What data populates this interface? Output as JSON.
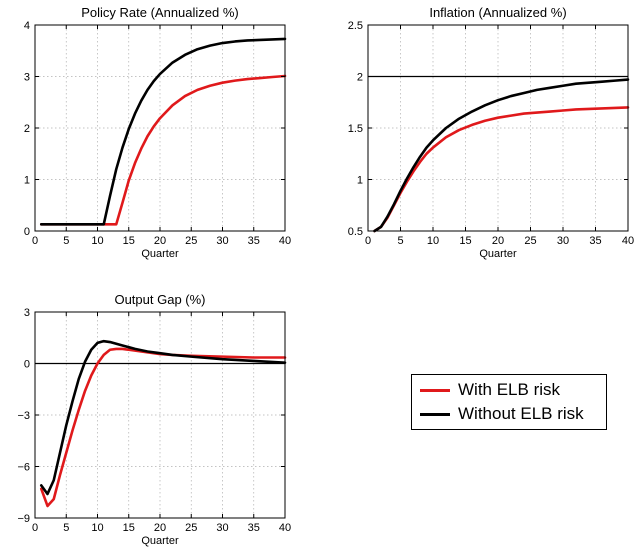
{
  "chart_data": [
    {
      "type": "line",
      "title": "Policy Rate (Annualized %)",
      "xlabel": "Quarter",
      "ylabel": "",
      "xlim": [
        0,
        40
      ],
      "ylim": [
        0,
        4
      ],
      "xticks": [
        0,
        5,
        10,
        15,
        20,
        25,
        30,
        35,
        40
      ],
      "yticks": [
        0,
        1,
        2,
        3,
        4
      ],
      "ytick_labels": [
        "0",
        "1",
        "2",
        "3",
        "4"
      ],
      "grid": true,
      "hline": null,
      "series": [
        {
          "name": "With ELB risk",
          "color": "#e0191b",
          "x": [
            1,
            2,
            4,
            6,
            8,
            10,
            11,
            12,
            13,
            14,
            15,
            16,
            17,
            18,
            19,
            20,
            22,
            24,
            26,
            28,
            30,
            32,
            34,
            36,
            38,
            40
          ],
          "y": [
            0.13,
            0.13,
            0.13,
            0.13,
            0.13,
            0.13,
            0.13,
            0.13,
            0.13,
            0.55,
            0.98,
            1.32,
            1.6,
            1.84,
            2.03,
            2.19,
            2.44,
            2.62,
            2.74,
            2.82,
            2.88,
            2.92,
            2.95,
            2.97,
            2.99,
            3.01
          ]
        },
        {
          "name": "Without ELB risk",
          "color": "#000000",
          "x": [
            1,
            2,
            4,
            6,
            8,
            10,
            11,
            12,
            13,
            14,
            15,
            16,
            17,
            18,
            19,
            20,
            22,
            24,
            26,
            28,
            30,
            32,
            34,
            36,
            38,
            40
          ],
          "y": [
            0.13,
            0.13,
            0.13,
            0.13,
            0.13,
            0.13,
            0.13,
            0.68,
            1.2,
            1.62,
            1.98,
            2.28,
            2.53,
            2.74,
            2.91,
            3.05,
            3.27,
            3.42,
            3.53,
            3.6,
            3.65,
            3.68,
            3.7,
            3.71,
            3.72,
            3.73
          ]
        }
      ]
    },
    {
      "type": "line",
      "title": "Inflation (Annualized %)",
      "xlabel": "Quarter",
      "ylabel": "",
      "xlim": [
        0,
        40
      ],
      "ylim": [
        0.5,
        2.5
      ],
      "xticks": [
        0,
        5,
        10,
        15,
        20,
        25,
        30,
        35,
        40
      ],
      "yticks": [
        0.5,
        1,
        1.5,
        2,
        2.5
      ],
      "ytick_labels": [
        "0.5",
        "1",
        "1.5",
        "2",
        "2.5"
      ],
      "grid": true,
      "hline": 2,
      "series": [
        {
          "name": "With ELB risk",
          "color": "#e0191b",
          "x": [
            1,
            2,
            3,
            4,
            5,
            6,
            7,
            8,
            9,
            10,
            12,
            14,
            16,
            18,
            20,
            22,
            24,
            26,
            28,
            30,
            32,
            34,
            36,
            38,
            40
          ],
          "y": [
            0.5,
            0.54,
            0.63,
            0.75,
            0.87,
            0.98,
            1.08,
            1.17,
            1.25,
            1.31,
            1.41,
            1.48,
            1.53,
            1.57,
            1.6,
            1.62,
            1.64,
            1.65,
            1.66,
            1.67,
            1.68,
            1.685,
            1.69,
            1.695,
            1.7
          ]
        },
        {
          "name": "Without ELB risk",
          "color": "#000000",
          "x": [
            1,
            2,
            3,
            4,
            5,
            6,
            7,
            8,
            9,
            10,
            12,
            14,
            16,
            18,
            20,
            22,
            24,
            26,
            28,
            30,
            32,
            34,
            36,
            38,
            40
          ],
          "y": [
            0.5,
            0.54,
            0.64,
            0.76,
            0.89,
            1.01,
            1.12,
            1.22,
            1.31,
            1.38,
            1.5,
            1.59,
            1.66,
            1.72,
            1.77,
            1.81,
            1.84,
            1.87,
            1.89,
            1.91,
            1.93,
            1.94,
            1.95,
            1.96,
            1.97
          ]
        }
      ]
    },
    {
      "type": "line",
      "title": "Output Gap (%)",
      "xlabel": "Quarter",
      "ylabel": "",
      "xlim": [
        0,
        40
      ],
      "ylim": [
        -9,
        3
      ],
      "xticks": [
        0,
        5,
        10,
        15,
        20,
        25,
        30,
        35,
        40
      ],
      "yticks": [
        -9,
        -6,
        -3,
        0,
        3
      ],
      "ytick_labels": [
        "−9",
        "−6",
        "−3",
        "0",
        "3"
      ],
      "grid": true,
      "hline": 0,
      "series": [
        {
          "name": "With ELB risk",
          "color": "#e0191b",
          "x": [
            1,
            2,
            3,
            4,
            5,
            6,
            7,
            8,
            9,
            10,
            11,
            12,
            13,
            14,
            15,
            16,
            18,
            20,
            22,
            25,
            30,
            35,
            40
          ],
          "y": [
            -7.3,
            -8.3,
            -7.9,
            -6.5,
            -5.2,
            -3.9,
            -2.7,
            -1.6,
            -0.7,
            0.0,
            0.5,
            0.8,
            0.85,
            0.85,
            0.8,
            0.75,
            0.65,
            0.55,
            0.5,
            0.45,
            0.4,
            0.35,
            0.35
          ]
        },
        {
          "name": "Without ELB risk",
          "color": "#000000",
          "x": [
            1,
            2,
            3,
            4,
            5,
            6,
            7,
            8,
            9,
            10,
            11,
            12,
            13,
            14,
            15,
            16,
            18,
            20,
            22,
            25,
            30,
            35,
            40
          ],
          "y": [
            -7.1,
            -7.6,
            -6.8,
            -5.2,
            -3.6,
            -2.2,
            -0.9,
            0.1,
            0.8,
            1.2,
            1.3,
            1.25,
            1.15,
            1.05,
            0.95,
            0.85,
            0.7,
            0.6,
            0.5,
            0.4,
            0.25,
            0.15,
            0.05
          ]
        }
      ]
    }
  ],
  "legend": {
    "items": [
      {
        "label": "With ELB risk",
        "color": "#e0191b"
      },
      {
        "label": "Without ELB risk",
        "color": "#000000"
      }
    ]
  }
}
